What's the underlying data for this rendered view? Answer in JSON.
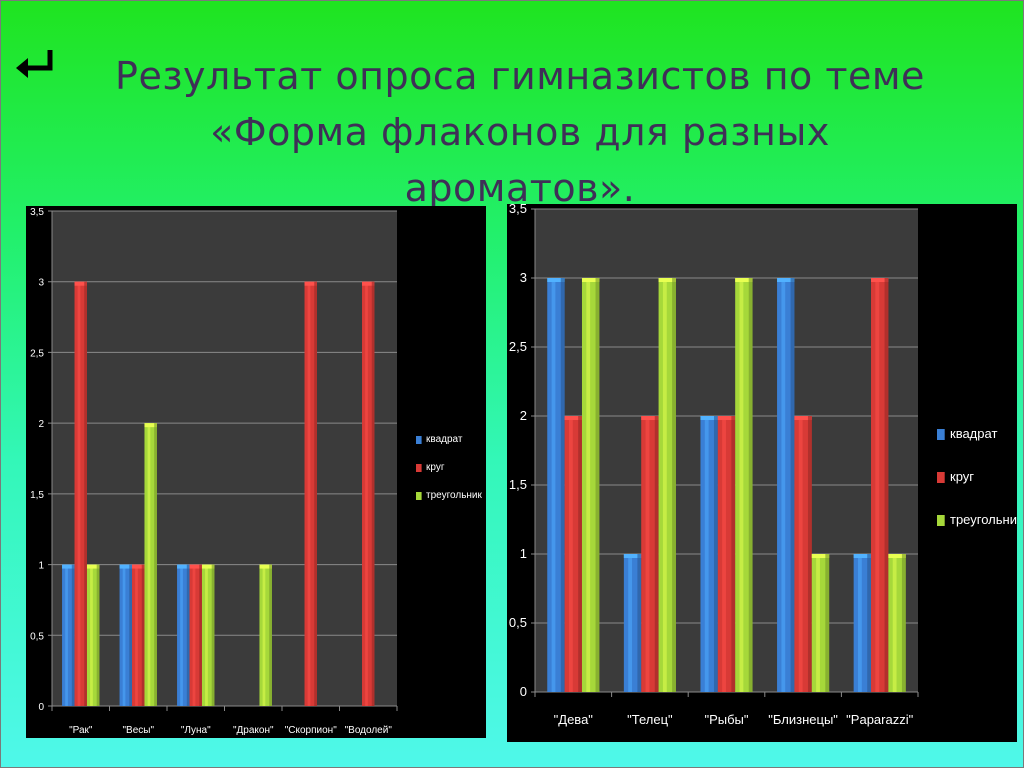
{
  "slide": {
    "back_icon": "return-arrow-icon",
    "title_lines": [
      "Результат опроса гимназистов по теме",
      "«Форма флаконов для разных",
      "ароматов»."
    ]
  },
  "chart_data": [
    {
      "type": "bar",
      "categories": [
        "\"Рак\"",
        "\"Весы\"",
        "\"Луна\"",
        "\"Дракон\"",
        "\"Скорпион\"",
        "\"Водолей\""
      ],
      "series": [
        {
          "name": "квадрат",
          "color": "#3a7fd5",
          "values": [
            1,
            1,
            1,
            0,
            0,
            0
          ]
        },
        {
          "name": "круг",
          "color": "#d83a36",
          "values": [
            3,
            1,
            1,
            0,
            3,
            3
          ]
        },
        {
          "name": "треугольник",
          "color": "#a6d83a",
          "values": [
            1,
            2,
            1,
            1,
            0,
            0
          ]
        }
      ],
      "yticks": [
        "0",
        "0,5",
        "1",
        "1,5",
        "2",
        "2,5",
        "3",
        "3,5"
      ],
      "ylim": [
        0,
        3.5
      ],
      "legend_position": "right",
      "grid": true
    },
    {
      "type": "bar",
      "categories": [
        "\"Дева\"",
        "\"Телец\"",
        "\"Рыбы\"",
        "\"Близнецы\"",
        "\"Paparazzi\""
      ],
      "series": [
        {
          "name": "квадрат",
          "color": "#3a7fd5",
          "values": [
            3,
            1,
            2,
            3,
            1
          ]
        },
        {
          "name": "круг",
          "color": "#d83a36",
          "values": [
            2,
            2,
            2,
            2,
            3
          ]
        },
        {
          "name": "треугольник",
          "color": "#a6d83a",
          "values": [
            3,
            3,
            3,
            1,
            1
          ]
        }
      ],
      "yticks": [
        "0",
        "0,5",
        "1",
        "1,5",
        "2",
        "2,5",
        "3",
        "3,5"
      ],
      "ylim": [
        0,
        3.5
      ],
      "legend_position": "right",
      "grid": true
    }
  ]
}
